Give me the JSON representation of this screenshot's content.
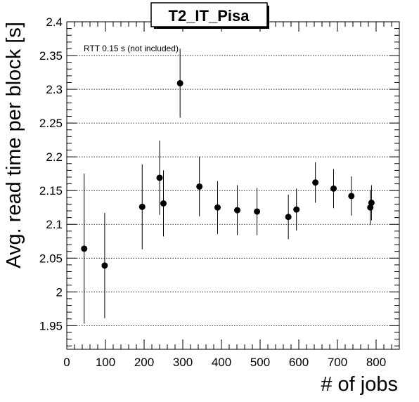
{
  "chart_data": {
    "type": "scatter",
    "title": "T2_IT_Pisa",
    "xlabel": "# of jobs",
    "ylabel": "Avg. read time per block [s]",
    "annotation": "RTT 0.15 s (not included)",
    "xlim": [
      0,
      860
    ],
    "ylim": [
      1.915,
      2.4
    ],
    "x_ticks": [
      0,
      100,
      200,
      300,
      400,
      500,
      600,
      700,
      800
    ],
    "x_tick_labels": [
      "0",
      "100",
      "200",
      "300",
      "400",
      "500",
      "600",
      "700",
      "800"
    ],
    "y_ticks": [
      1.95,
      2.0,
      2.05,
      2.1,
      2.15,
      2.2,
      2.25,
      2.3,
      2.35,
      2.4
    ],
    "y_tick_labels": [
      "1.95",
      "2",
      "2.05",
      "2.1",
      "2.15",
      "2.2",
      "2.25",
      "2.3",
      "2.35",
      "2.4"
    ],
    "grid": "horizontal dotted",
    "marker_color": "#000000",
    "points": [
      {
        "x": 45,
        "y": 2.064,
        "err": 0.111
      },
      {
        "x": 98,
        "y": 2.039,
        "err": 0.078
      },
      {
        "x": 195,
        "y": 2.126,
        "err": 0.063
      },
      {
        "x": 240,
        "y": 2.169,
        "err": 0.055
      },
      {
        "x": 250,
        "y": 2.131,
        "err": 0.049
      },
      {
        "x": 293,
        "y": 2.309,
        "err": 0.051
      },
      {
        "x": 343,
        "y": 2.156,
        "err": 0.044
      },
      {
        "x": 390,
        "y": 2.125,
        "err": 0.039
      },
      {
        "x": 441,
        "y": 2.121,
        "err": 0.037
      },
      {
        "x": 492,
        "y": 2.119,
        "err": 0.035
      },
      {
        "x": 573,
        "y": 2.111,
        "err": 0.033
      },
      {
        "x": 594,
        "y": 2.122,
        "err": 0.031
      },
      {
        "x": 643,
        "y": 2.162,
        "err": 0.03
      },
      {
        "x": 690,
        "y": 2.153,
        "err": 0.029
      },
      {
        "x": 736,
        "y": 2.142,
        "err": 0.029
      },
      {
        "x": 785,
        "y": 2.125,
        "err": 0.026
      },
      {
        "x": 788,
        "y": 2.132,
        "err": 0.026
      }
    ]
  }
}
